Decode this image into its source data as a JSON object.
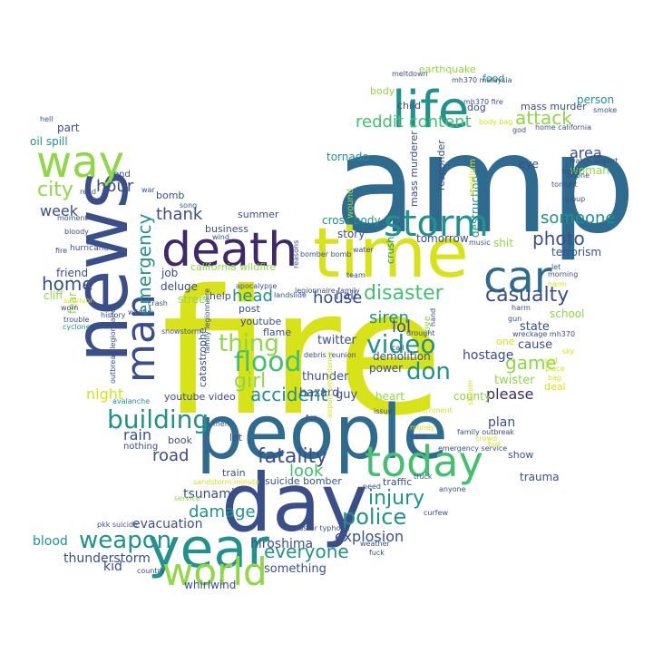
{
  "palette": {
    "navy": "#3a4f8a",
    "steel": "#2e6b8e",
    "teal": "#21918c",
    "green": "#44bf70",
    "lime": "#8fd744",
    "yellow": "#d8e219",
    "purple": "#3e2a6b",
    "violet": "#482878"
  },
  "words": [
    {
      "text": "fire",
      "color": "#d8e219"
    },
    {
      "text": "amp",
      "color": "#2e6b8e"
    },
    {
      "text": "people",
      "color": "#2e6b8e"
    },
    {
      "text": "news",
      "color": "#3a4f8a"
    },
    {
      "text": "time",
      "color": "#d8e219"
    },
    {
      "text": "day",
      "color": "#3a4f8a"
    },
    {
      "text": "death",
      "color": "#3e2a6b"
    },
    {
      "text": "life",
      "color": "#21918c"
    },
    {
      "text": "year",
      "color": "#21918c"
    },
    {
      "text": "car",
      "color": "#2e6b8e"
    },
    {
      "text": "storm",
      "color": "#21918c"
    },
    {
      "text": "man",
      "color": "#3a4f8a"
    },
    {
      "text": "way",
      "color": "#8fd744"
    },
    {
      "text": "today",
      "color": "#44bf70"
    },
    {
      "text": "world",
      "color": "#8fd744"
    },
    {
      "text": "emergency",
      "color": "#21918c"
    },
    {
      "text": "flood",
      "color": "#44bf70"
    },
    {
      "text": "thing",
      "color": "#8fd744"
    },
    {
      "text": "video",
      "color": "#21918c"
    },
    {
      "text": "building",
      "color": "#21918c"
    },
    {
      "text": "police",
      "color": "#21918c"
    },
    {
      "text": "don",
      "color": "#21918c"
    },
    {
      "text": "weapon",
      "color": "#21918c"
    },
    {
      "text": "disaster",
      "color": "#44bf70"
    },
    {
      "text": "casualty",
      "color": "#3a4f8a"
    },
    {
      "text": "accident",
      "color": "#21918c"
    },
    {
      "text": "fatality",
      "color": "#3a4f8a"
    },
    {
      "text": "injury",
      "color": "#21918c"
    },
    {
      "text": "attack",
      "color": "#8fd744"
    },
    {
      "text": "reddit content",
      "color": "#44bf70"
    },
    {
      "text": "city",
      "color": "#8fd744"
    },
    {
      "text": "home",
      "color": "#3a4f8a"
    },
    {
      "text": "photo",
      "color": "#3a4f8a"
    },
    {
      "text": "girl",
      "color": "#8fd744"
    },
    {
      "text": "head",
      "color": "#21918c"
    },
    {
      "text": "house",
      "color": "#3a4f8a"
    },
    {
      "text": "siren",
      "color": "#21918c"
    },
    {
      "text": "game",
      "color": "#8fd744"
    },
    {
      "text": "everyone",
      "color": "#21918c"
    },
    {
      "text": "damage",
      "color": "#21918c"
    },
    {
      "text": "look",
      "color": "#44bf70"
    },
    {
      "text": "lol",
      "color": "#3a4f8a"
    },
    {
      "text": "please",
      "color": "#3e2a6b"
    },
    {
      "text": "someone",
      "color": "#21918c"
    },
    {
      "text": "area",
      "color": "#3a4f8a"
    },
    {
      "text": "thank",
      "color": "#3a4f8a"
    },
    {
      "text": "hour",
      "color": "#3a4f8a"
    },
    {
      "text": "week",
      "color": "#3a4f8a"
    },
    {
      "text": "rain",
      "color": "#3a4f8a"
    },
    {
      "text": "road",
      "color": "#3a4f8a"
    },
    {
      "text": "night",
      "color": "#d8e219"
    },
    {
      "text": "explosion",
      "color": "#3a4f8a"
    },
    {
      "text": "hiroshima",
      "color": "#3a4f8a"
    },
    {
      "text": "tsunami",
      "color": "#3a4f8a"
    },
    {
      "text": "thunderstorm",
      "color": "#3a4f8a"
    },
    {
      "text": "evacuation",
      "color": "#3a4f8a"
    },
    {
      "text": "blood",
      "color": "#21918c"
    },
    {
      "text": "kid",
      "color": "#3a4f8a"
    },
    {
      "text": "whirlwind",
      "color": "#3a4f8a"
    },
    {
      "text": "something",
      "color": "#3a4f8a"
    },
    {
      "text": "hostage",
      "color": "#3a4f8a"
    },
    {
      "text": "plan",
      "color": "#3a4f8a"
    },
    {
      "text": "twister",
      "color": "#8fd744"
    },
    {
      "text": "cause",
      "color": "#3a4f8a"
    },
    {
      "text": "state",
      "color": "#3a4f8a"
    },
    {
      "text": "school",
      "color": "#8fd744"
    },
    {
      "text": "trauma",
      "color": "#3a4f8a"
    },
    {
      "text": "show",
      "color": "#3a4f8a"
    },
    {
      "text": "deal",
      "color": "#d8e219"
    },
    {
      "text": "county",
      "color": "#8fd744"
    },
    {
      "text": "heart",
      "color": "#8fd744"
    },
    {
      "text": "power",
      "color": "#3a4f8a"
    },
    {
      "text": "demolition",
      "color": "#3a4f8a"
    },
    {
      "text": "thunder",
      "color": "#3a4f8a"
    },
    {
      "text": "twitter",
      "color": "#3a4f8a"
    },
    {
      "text": "guy",
      "color": "#3a4f8a"
    },
    {
      "text": "hazard",
      "color": "#3a4f8a"
    },
    {
      "text": "hail",
      "color": "#3a4f8a"
    },
    {
      "text": "story",
      "color": "#3a4f8a"
    },
    {
      "text": "tomorrow",
      "color": "#3a4f8a"
    },
    {
      "text": "cross body",
      "color": "#21918c"
    },
    {
      "text": "crush",
      "color": "#21918c"
    },
    {
      "text": "one",
      "color": "#d8e219"
    },
    {
      "text": "shit",
      "color": "#8fd744"
    },
    {
      "text": "terrorism",
      "color": "#3a4f8a"
    },
    {
      "text": "destruction",
      "color": "#21918c"
    },
    {
      "text": "responder",
      "color": "#3a4f8a"
    },
    {
      "text": "mass murderer",
      "color": "#3a4f8a"
    },
    {
      "text": "tornado",
      "color": "#21918c"
    },
    {
      "text": "wound",
      "color": "#8fd744"
    },
    {
      "text": "eye",
      "color": "#3a4f8a"
    },
    {
      "text": "woman",
      "color": "#8fd744"
    },
    {
      "text": "person",
      "color": "#21918c"
    },
    {
      "text": "mass murder",
      "color": "#3a4f8a"
    },
    {
      "text": "dog",
      "color": "#3a4f8a"
    },
    {
      "text": "child",
      "color": "#3a4f8a"
    },
    {
      "text": "body",
      "color": "#8fd744"
    },
    {
      "text": "food",
      "color": "#21918c"
    },
    {
      "text": "earthquake",
      "color": "#8fd744"
    },
    {
      "text": "oil spill",
      "color": "#21918c"
    },
    {
      "text": "part",
      "color": "#3a4f8a"
    },
    {
      "text": "end",
      "color": "#3a4f8a"
    },
    {
      "text": "bomb",
      "color": "#3a4f8a"
    },
    {
      "text": "friend",
      "color": "#3a4f8a"
    },
    {
      "text": "cliff",
      "color": "#8fd744"
    },
    {
      "text": "fear",
      "color": "#8fd744"
    },
    {
      "text": "job",
      "color": "#3a4f8a"
    },
    {
      "text": "deluge",
      "color": "#3a4f8a"
    },
    {
      "text": "street",
      "color": "#8fd744"
    },
    {
      "text": "help",
      "color": "#3a4f8a"
    },
    {
      "text": "post",
      "color": "#3a4f8a"
    },
    {
      "text": "business",
      "color": "#3a4f8a"
    },
    {
      "text": "summer",
      "color": "#3a4f8a"
    },
    {
      "text": "california wildfire",
      "color": "#8fd744"
    },
    {
      "text": "catastrophe",
      "color": "#3a4f8a"
    },
    {
      "text": "flame",
      "color": "#3a4f8a"
    },
    {
      "text": "youtube",
      "color": "#3a4f8a"
    },
    {
      "text": "youtube video",
      "color": "#3a4f8a"
    },
    {
      "text": "book",
      "color": "#3a4f8a"
    },
    {
      "text": "lot",
      "color": "#3a4f8a"
    },
    {
      "text": "nothing",
      "color": "#3a4f8a"
    },
    {
      "text": "train",
      "color": "#3a4f8a"
    },
    {
      "text": "suicide bomber",
      "color": "#3a4f8a"
    },
    {
      "text": "traffic",
      "color": "#3a4f8a"
    },
    {
      "text": "love",
      "color": "#8fd744"
    },
    {
      "text": "medium",
      "color": "#d8e219"
    },
    {
      "text": "hurricane",
      "color": "#3a4f8a"
    },
    {
      "text": "wildfire",
      "color": "#3a4f8a"
    },
    {
      "text": "history",
      "color": "#3a4f8a"
    },
    {
      "text": "trouble",
      "color": "#3a4f8a"
    },
    {
      "text": "cyclone",
      "color": "#21918c"
    },
    {
      "text": "bloody",
      "color": "#3a4f8a"
    },
    {
      "text": "moment",
      "color": "#3a4f8a"
    },
    {
      "text": "war",
      "color": "#3a4f8a"
    },
    {
      "text": "song",
      "color": "#3a4f8a"
    },
    {
      "text": "wind",
      "color": "#3a4f8a"
    },
    {
      "text": "snowstorm",
      "color": "#3a4f8a"
    },
    {
      "text": "crash",
      "color": "#3a4f8a"
    },
    {
      "text": "emergency service",
      "color": "#3a4f8a"
    },
    {
      "text": "family outbreak",
      "color": "#3a4f8a"
    },
    {
      "text": "country",
      "color": "#3a4f8a"
    },
    {
      "text": "pkk suicide",
      "color": "#3a4f8a"
    },
    {
      "text": "fuck",
      "color": "#3a4f8a"
    },
    {
      "text": "weather",
      "color": "#3a4f8a"
    },
    {
      "text": "disaster typhoon",
      "color": "#3a4f8a"
    },
    {
      "text": "avalanche",
      "color": "#21918c"
    },
    {
      "text": "men",
      "color": "#3a4f8a"
    },
    {
      "text": "fun",
      "color": "#3a4f8a"
    },
    {
      "text": "case",
      "color": "#3a4f8a"
    },
    {
      "text": "issue",
      "color": "#3a4f8a"
    },
    {
      "text": "call",
      "color": "#3a4f8a"
    },
    {
      "text": "music",
      "color": "#3a4f8a"
    },
    {
      "text": "water",
      "color": "#3a4f8a"
    },
    {
      "text": "truck",
      "color": "#3a4f8a"
    },
    {
      "text": "anyone",
      "color": "#3a4f8a"
    },
    {
      "text": "need",
      "color": "#3a4f8a"
    },
    {
      "text": "drought",
      "color": "#3a4f8a"
    },
    {
      "text": "gun",
      "color": "#3a4f8a"
    },
    {
      "text": "hand",
      "color": "#3a4f8a"
    },
    {
      "text": "curfew",
      "color": "#3a4f8a"
    },
    {
      "text": "team",
      "color": "#3a4f8a"
    },
    {
      "text": "landslide",
      "color": "#3a4f8a"
    },
    {
      "text": "sandstorm minute",
      "color": "#d8e219"
    },
    {
      "text": "service",
      "color": "#8fd744"
    },
    {
      "text": "word",
      "color": "#3a4f8a"
    },
    {
      "text": "tonight",
      "color": "#3a4f8a"
    },
    {
      "text": "phone",
      "color": "#3a4f8a"
    },
    {
      "text": "watch airport",
      "color": "#3a4f8a"
    },
    {
      "text": "group",
      "color": "#3a4f8a"
    },
    {
      "text": "harm",
      "color": "#3a4f8a"
    },
    {
      "text": "let",
      "color": "#3a4f8a"
    },
    {
      "text": "morning",
      "color": "#3a4f8a"
    },
    {
      "text": "smoke",
      "color": "#3a4f8a"
    },
    {
      "text": "home california",
      "color": "#3a4f8a"
    },
    {
      "text": "meltdown",
      "color": "#3a4f8a"
    },
    {
      "text": "mh370 malaysia",
      "color": "#3a4f8a"
    },
    {
      "text": "hell",
      "color": "#3a4f8a"
    },
    {
      "text": "wreckage mh370",
      "color": "#3a4f8a"
    },
    {
      "text": "bomber bomb",
      "color": "#3a4f8a"
    },
    {
      "text": "legionnaire family",
      "color": "#3a4f8a"
    },
    {
      "text": "apocalypse",
      "color": "#3a4f8a"
    },
    {
      "text": "survivor",
      "color": "#d8e219"
    },
    {
      "text": "wom",
      "color": "#3a4f8a"
    },
    {
      "text": "fire",
      "color": "#3a4f8a"
    },
    {
      "text": "read",
      "color": "#3a4f8a"
    },
    {
      "text": "god",
      "color": "#3a4f8a"
    },
    {
      "text": "place",
      "color": "#d8e219"
    },
    {
      "text": "mh370 fire",
      "color": "#3a4f8a"
    },
    {
      "text": "debris reunion",
      "color": "#3a4f8a"
    },
    {
      "text": "reasons",
      "color": "#3a4f8a"
    },
    {
      "text": "outbreak legionnaire",
      "color": "#3a4f8a"
    },
    {
      "text": "family legionnaire",
      "color": "#3a4f8a"
    },
    {
      "text": "body bag",
      "color": "#d8e219"
    },
    {
      "text": "airport ambulance",
      "color": "#d8e219"
    },
    {
      "text": "government",
      "color": "#d8e219"
    },
    {
      "text": "fort",
      "color": "#d8e219"
    },
    {
      "text": "money",
      "color": "#d8e219"
    },
    {
      "text": "stream",
      "color": "#d8e219"
    },
    {
      "text": "crowd",
      "color": "#d8e219"
    },
    {
      "text": "sort",
      "color": "#d8e219"
    },
    {
      "text": "bag",
      "color": "#d8e219"
    },
    {
      "text": "sky",
      "color": "#d8e219"
    },
    {
      "text": "harm",
      "color": "#d8e219"
    }
  ]
}
